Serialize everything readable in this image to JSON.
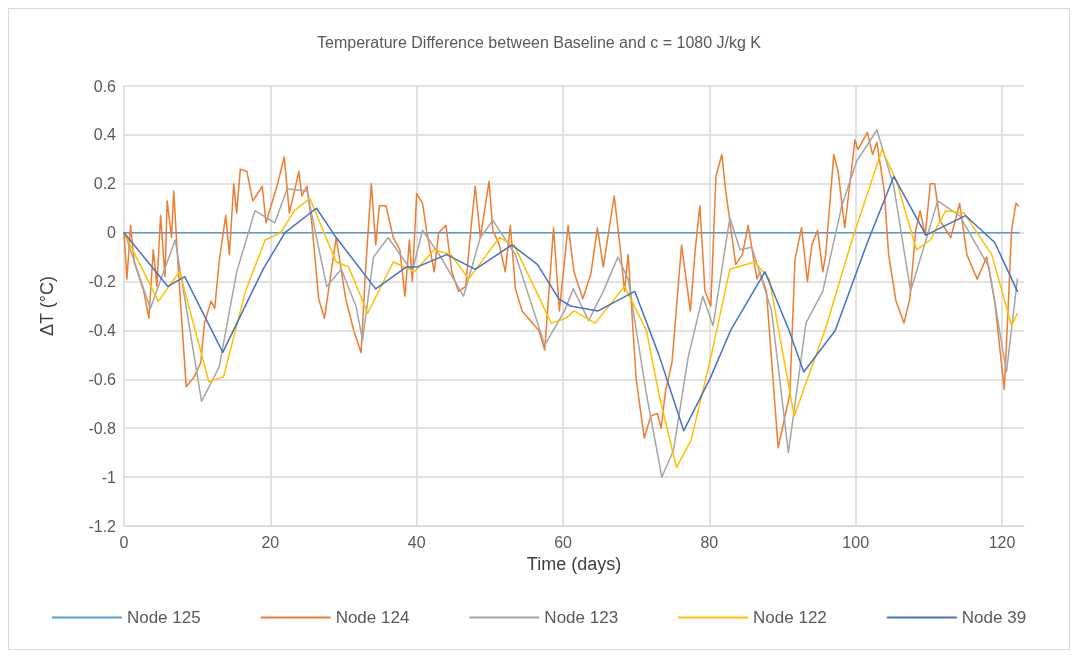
{
  "chart_data": {
    "type": "line",
    "title": "Temperature Difference between Baseline and c = 1080 J/kg K",
    "xlabel": "Time (days)",
    "ylabel": "ΔT (°C)",
    "xlim": [
      0,
      123
    ],
    "xticks": [
      0,
      20,
      40,
      60,
      80,
      100,
      120
    ],
    "ylim": [
      -1.2,
      0.6
    ],
    "yticks": [
      -1.2,
      -1,
      -0.8,
      -0.6,
      -0.4,
      -0.2,
      0,
      0.2,
      0.4,
      0.6
    ],
    "grid": true,
    "legend": "bottom",
    "marker": "none",
    "line_style": "solid",
    "series": [
      {
        "name": "Node 125",
        "color": "#5b9bd5",
        "x": [
          0,
          122.3
        ],
        "values": [
          0,
          0
        ]
      },
      {
        "name": "Node 124",
        "color": "#ed7d31",
        "x": [
          0,
          0.4,
          0.9,
          1.4,
          2.7,
          3.4,
          4,
          4.5,
          5,
          5.6,
          5.9,
          6.5,
          6.8,
          7.4,
          8.5,
          9.6,
          10.5,
          11,
          11.9,
          12.4,
          13,
          13.9,
          14.4,
          15,
          15.4,
          15.9,
          16.8,
          17.6,
          18.9,
          19.4,
          21,
          21.9,
          22.6,
          23.9,
          24.3,
          25,
          25.7,
          26.6,
          27.4,
          29,
          30.3,
          31.4,
          32.4,
          33,
          33.8,
          34.4,
          34.9,
          35.8,
          36.8,
          37.7,
          38.4,
          39,
          39.4,
          40,
          40.8,
          41.4,
          42.4,
          43,
          44,
          44.8,
          45.7,
          46.7,
          47.3,
          48,
          48.7,
          49.9,
          50.4,
          51.3,
          52.1,
          52.8,
          53.5,
          54.4,
          56.7,
          57.5,
          58.7,
          59.5,
          60.7,
          61.5,
          62.7,
          63.8,
          64.7,
          65.5,
          67,
          67.8,
          68.4,
          68.9,
          70,
          71.1,
          72,
          72.9,
          73.4,
          74,
          74.9,
          76.2,
          77.4,
          78.1,
          78.7,
          79.4,
          80.2,
          80.9,
          81.7,
          82.2,
          83.6,
          84.5,
          85.3,
          86.5,
          86.9,
          87.8,
          89.4,
          90.2,
          91,
          91.7,
          92.6,
          93.4,
          94,
          94.8,
          95.5,
          95.9,
          97,
          97.6,
          98.5,
          99.2,
          99.9,
          100.3,
          101.6,
          102.3,
          102.9,
          103.9,
          104.5,
          105.5,
          106.6,
          107.4,
          108.2,
          108.8,
          109.5,
          110.2,
          110.8,
          111.5,
          113,
          114.2,
          115.2,
          116.6,
          117.9,
          119,
          120.3,
          120.8,
          121.3,
          121.9,
          122.2
        ],
        "values": [
          0,
          -0.19,
          0.03,
          -0.12,
          -0.24,
          -0.35,
          -0.07,
          -0.22,
          0.07,
          -0.18,
          0.13,
          -0.02,
          0.17,
          -0.14,
          -0.63,
          -0.59,
          -0.53,
          -0.37,
          -0.28,
          -0.31,
          -0.12,
          0.07,
          -0.09,
          0.2,
          0.08,
          0.26,
          0.25,
          0.13,
          0.19,
          0.04,
          0.2,
          0.31,
          0.08,
          0.25,
          0.15,
          0.19,
          0.03,
          -0.27,
          -0.35,
          -0.02,
          -0.27,
          -0.4,
          -0.49,
          -0.16,
          0.2,
          -0.05,
          0.11,
          0.11,
          -0.02,
          -0.07,
          -0.26,
          -0.03,
          -0.2,
          0.16,
          0.12,
          0,
          -0.16,
          0,
          0.03,
          -0.16,
          -0.24,
          -0.22,
          -0.02,
          0.19,
          -0.02,
          0.21,
          0.01,
          -0.05,
          -0.16,
          0.03,
          -0.23,
          -0.32,
          -0.4,
          -0.48,
          0.02,
          -0.32,
          0.03,
          -0.16,
          -0.27,
          -0.17,
          0.02,
          -0.14,
          0.15,
          -0.06,
          -0.24,
          -0.09,
          -0.6,
          -0.84,
          -0.75,
          -0.74,
          -0.8,
          -0.65,
          -0.53,
          -0.05,
          -0.32,
          -0.06,
          0.11,
          -0.24,
          -0.3,
          0.23,
          0.32,
          0.18,
          -0.13,
          -0.09,
          0.03,
          -0.19,
          -0.16,
          -0.24,
          -0.88,
          -0.77,
          -0.66,
          -0.11,
          0.02,
          -0.2,
          -0.05,
          0.01,
          -0.16,
          -0.09,
          0.32,
          0.25,
          0.02,
          0.2,
          0.38,
          0.34,
          0.41,
          0.32,
          0.37,
          0.17,
          -0.09,
          -0.28,
          -0.37,
          -0.27,
          0.01,
          0.09,
          -0.01,
          0.2,
          0.2,
          0.05,
          -0.02,
          0.12,
          -0.09,
          -0.19,
          -0.1,
          -0.28,
          -0.64,
          -0.33,
          0.01,
          0.12,
          0.11
        ]
      },
      {
        "name": "Node 123",
        "color": "#a5a5a5",
        "x": [
          0,
          0.3,
          3.6,
          7,
          10.6,
          13,
          15.4,
          17.9,
          20.6,
          22.3,
          25,
          27.7,
          29.7,
          31.7,
          32.6,
          34.1,
          36.1,
          39.4,
          40.8,
          43.3,
          46.4,
          48.7,
          50.4,
          53.5,
          57.5,
          60.2,
          61.4,
          63.5,
          65.5,
          67.5,
          68.9,
          71.4,
          73.5,
          75.1,
          77.1,
          79.1,
          80.5,
          82.8,
          84.2,
          85.8,
          88.5,
          90.8,
          93.2,
          95.5,
          98.1,
          100.1,
          102.9,
          105.2,
          107.5,
          108.8,
          111.2,
          114.2,
          118.2,
          120.6,
          122.1
        ],
        "values": [
          0,
          -0.02,
          -0.31,
          -0.03,
          -0.69,
          -0.55,
          -0.16,
          0.09,
          0.04,
          0.18,
          0.17,
          -0.22,
          -0.15,
          -0.3,
          -0.44,
          -0.1,
          -0.02,
          -0.16,
          0.01,
          -0.1,
          -0.26,
          -0.02,
          0.05,
          -0.09,
          -0.46,
          -0.32,
          -0.23,
          -0.36,
          -0.24,
          -0.1,
          -0.19,
          -0.66,
          -1,
          -0.89,
          -0.51,
          -0.26,
          -0.38,
          0.06,
          -0.07,
          -0.06,
          -0.32,
          -0.9,
          -0.37,
          -0.24,
          0.11,
          0.29,
          0.42,
          0.19,
          -0.24,
          -0.11,
          0.13,
          0.07,
          -0.14,
          -0.57,
          -0.19
        ]
      },
      {
        "name": "Node 122",
        "color": "#ffc000",
        "x": [
          0,
          4.7,
          7.6,
          11.6,
          13.6,
          16.6,
          19.3,
          21.4,
          23.3,
          25.4,
          29,
          30.7,
          33.3,
          36.8,
          39.7,
          42.4,
          44.7,
          47.1,
          51.3,
          53.3,
          58.4,
          60.4,
          61.5,
          64.4,
          68.4,
          71.4,
          73.1,
          75.5,
          77.5,
          80.2,
          82.8,
          86.2,
          88.2,
          91.6,
          95.9,
          99.5,
          103.6,
          105.6,
          108.3,
          110.2,
          112.3,
          114.8,
          118.6,
          121.3,
          122.1
        ],
        "values": [
          0,
          -0.28,
          -0.16,
          -0.61,
          -0.59,
          -0.24,
          -0.03,
          0,
          0.09,
          0.14,
          -0.12,
          -0.14,
          -0.33,
          -0.12,
          -0.16,
          -0.07,
          -0.09,
          -0.19,
          -0.02,
          -0.05,
          -0.37,
          -0.35,
          -0.32,
          -0.37,
          -0.22,
          -0.4,
          -0.66,
          -0.96,
          -0.85,
          -0.51,
          -0.15,
          -0.12,
          -0.19,
          -0.75,
          -0.39,
          -0.03,
          0.34,
          0.21,
          -0.07,
          -0.03,
          0.09,
          0.08,
          -0.09,
          -0.38,
          -0.33
        ]
      },
      {
        "name": "Node 39",
        "color": "#4472c4",
        "x": [
          0,
          6,
          8.3,
          13.5,
          19,
          22,
          26.3,
          29,
          34.4,
          38.6,
          40.1,
          44.1,
          48,
          53,
          56.5,
          59.4,
          61,
          64.8,
          69.8,
          73.1,
          76.5,
          80.2,
          82.9,
          87.6,
          90.9,
          92.9,
          97.2,
          101.6,
          105.2,
          109.6,
          115,
          119,
          122.1
        ],
        "values": [
          0,
          -0.22,
          -0.18,
          -0.49,
          -0.15,
          0,
          0.1,
          -0.02,
          -0.23,
          -0.14,
          -0.14,
          -0.09,
          -0.15,
          -0.05,
          -0.13,
          -0.27,
          -0.3,
          -0.32,
          -0.24,
          -0.5,
          -0.81,
          -0.59,
          -0.4,
          -0.16,
          -0.4,
          -0.57,
          -0.4,
          -0.04,
          0.23,
          -0.01,
          0.07,
          -0.04,
          -0.24
        ]
      }
    ]
  }
}
